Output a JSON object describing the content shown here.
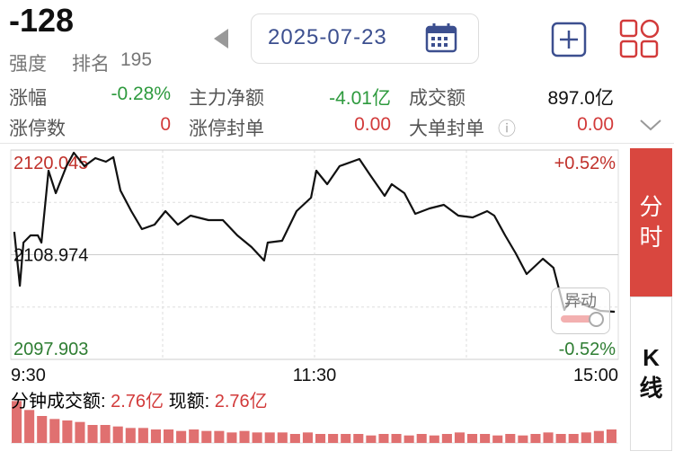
{
  "header": {
    "value": "-128",
    "strength_label": "强度",
    "rank_label": "排名",
    "rank": "195"
  },
  "date": "2025-07-23",
  "stats": [
    {
      "label": "涨幅",
      "value": "-0.28%",
      "color": "#2e9a3e"
    },
    {
      "label": "主力净额",
      "value": "-4.01亿",
      "color": "#2e9a3e"
    },
    {
      "label": "成交额",
      "value": "897.0亿",
      "color": "#111111"
    },
    {
      "label": "涨停数",
      "value": "0",
      "color": "#d23a3a"
    },
    {
      "label": "涨停封单",
      "value": "0.00",
      "color": "#d23a3a"
    },
    {
      "label": "大单封单",
      "value": "0.00",
      "color": "#d23a3a"
    }
  ],
  "tabs": [
    "分时",
    "K线"
  ],
  "badge": "异动",
  "volume_info": {
    "label": "分钟成交额:",
    "value": "2.76亿",
    "current_label": "现额:",
    "current_value": "2.76亿"
  },
  "chart_data": [
    {
      "type": "line",
      "color": "#111111",
      "x": [
        1.4,
        3.6,
        5.0,
        7.8,
        10.7,
        12.1,
        14.9,
        17.8,
        22.0,
        24.9,
        29.1,
        33.4,
        37.6,
        40.5,
        43.3,
        47.6,
        51.8,
        56.8,
        61.1,
        66.0,
        71.0,
        78.1,
        83.8,
        89.5,
        95.1,
        100.1,
        101.5,
        107.2,
        112.9,
        118.6,
        120.7,
        125.0,
        129.9,
        137.7,
        142.0,
        147.7,
        150.5,
        155.5,
        159.8,
        165.4,
        171.1,
        176.8,
        182.5,
        188.2,
        191.0,
        195.3,
        199.5,
        203.8,
        210.2,
        214.4,
        218.7,
        221.5,
        227.2,
        232.9,
        238.6
      ],
      "values": [
        2111.4,
        2105.7,
        2110.26,
        2111.02,
        2111.02,
        2110.26,
        2117.86,
        2115.48,
        2118.34,
        2119.76,
        2118.34,
        2119.19,
        2118.81,
        2119.29,
        2115.77,
        2113.58,
        2111.68,
        2112.16,
        2113.58,
        2112.16,
        2113.11,
        2112.63,
        2112.63,
        2111.02,
        2109.78,
        2108.36,
        2110.26,
        2110.45,
        2113.58,
        2115.01,
        2117.86,
        2116.43,
        2118.34,
        2119.09,
        2117.38,
        2115.2,
        2116.43,
        2115.48,
        2113.3,
        2113.87,
        2114.25,
        2113.11,
        2112.92,
        2113.58,
        2113.11,
        2111.02,
        2109.12,
        2106.93,
        2108.55,
        2107.59,
        2103.13,
        2104.56,
        2103.6,
        2103.03,
        2102.94
      ],
      "xlim": [
        0,
        240
      ],
      "xticks": [
        {
          "value": 0,
          "label": "9:30"
        },
        {
          "value": 120,
          "label": "11:30"
        },
        {
          "value": 240,
          "label": "15:00"
        }
      ],
      "ylim": [
        2097.903,
        2120.045
      ],
      "yticks": [
        2120.045,
        2108.974,
        2097.903
      ],
      "y2lim": [
        -0.52,
        0.52
      ],
      "y2ticks": [
        {
          "value": 0.52,
          "label": "+0.52%"
        },
        {
          "value": -0.52,
          "label": "-0.52%"
        }
      ]
    },
    {
      "type": "bar",
      "color": "#e07070",
      "ylim": [
        0,
        30
      ],
      "values": [
        28,
        22,
        18,
        16,
        15,
        14,
        12,
        12,
        11,
        10,
        10,
        9,
        9,
        8,
        9,
        8,
        8,
        7,
        8,
        7,
        7,
        7,
        6,
        7,
        6,
        6,
        6,
        6,
        5,
        6,
        6,
        5,
        6,
        5,
        6,
        7,
        6,
        6,
        5,
        6,
        5,
        6,
        7,
        6,
        6,
        7,
        8,
        9
      ]
    }
  ]
}
